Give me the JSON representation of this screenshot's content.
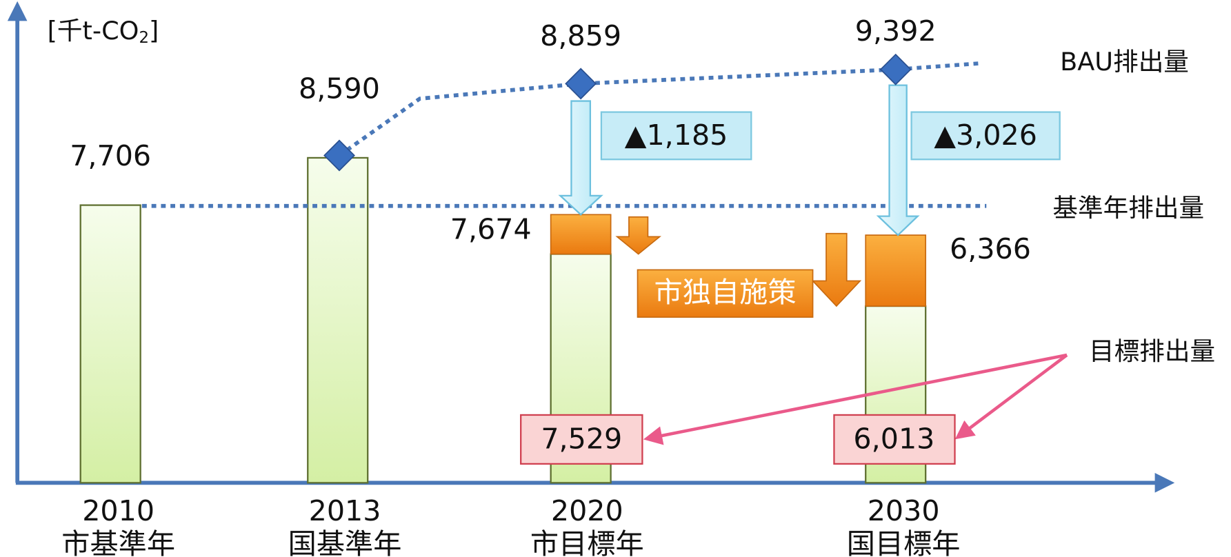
{
  "unit": {
    "open": "[千t-CO",
    "sub": "2",
    "close": "]"
  },
  "years": [
    {
      "year": "2010",
      "label": "市基準年"
    },
    {
      "year": "2013",
      "label": "国基準年"
    },
    {
      "year": "2020",
      "label": "市目標年"
    },
    {
      "year": "2030",
      "label": "国目標年"
    }
  ],
  "values": {
    "base_2010": "7,706",
    "bau_2013": "8,590",
    "bau_2020": "8,859",
    "bau_2030": "9,392",
    "after_national_2020": "7,674",
    "after_national_2030": "6,366",
    "target_2020": "7,529",
    "target_2030": "6,013"
  },
  "reductions": {
    "2020": "▲1,185",
    "2030": "▲3,026"
  },
  "labels": {
    "bau": "BAU排出量",
    "base": "基準年排出量",
    "target": "目標排出量",
    "city_measures": "市独自施策"
  }
}
